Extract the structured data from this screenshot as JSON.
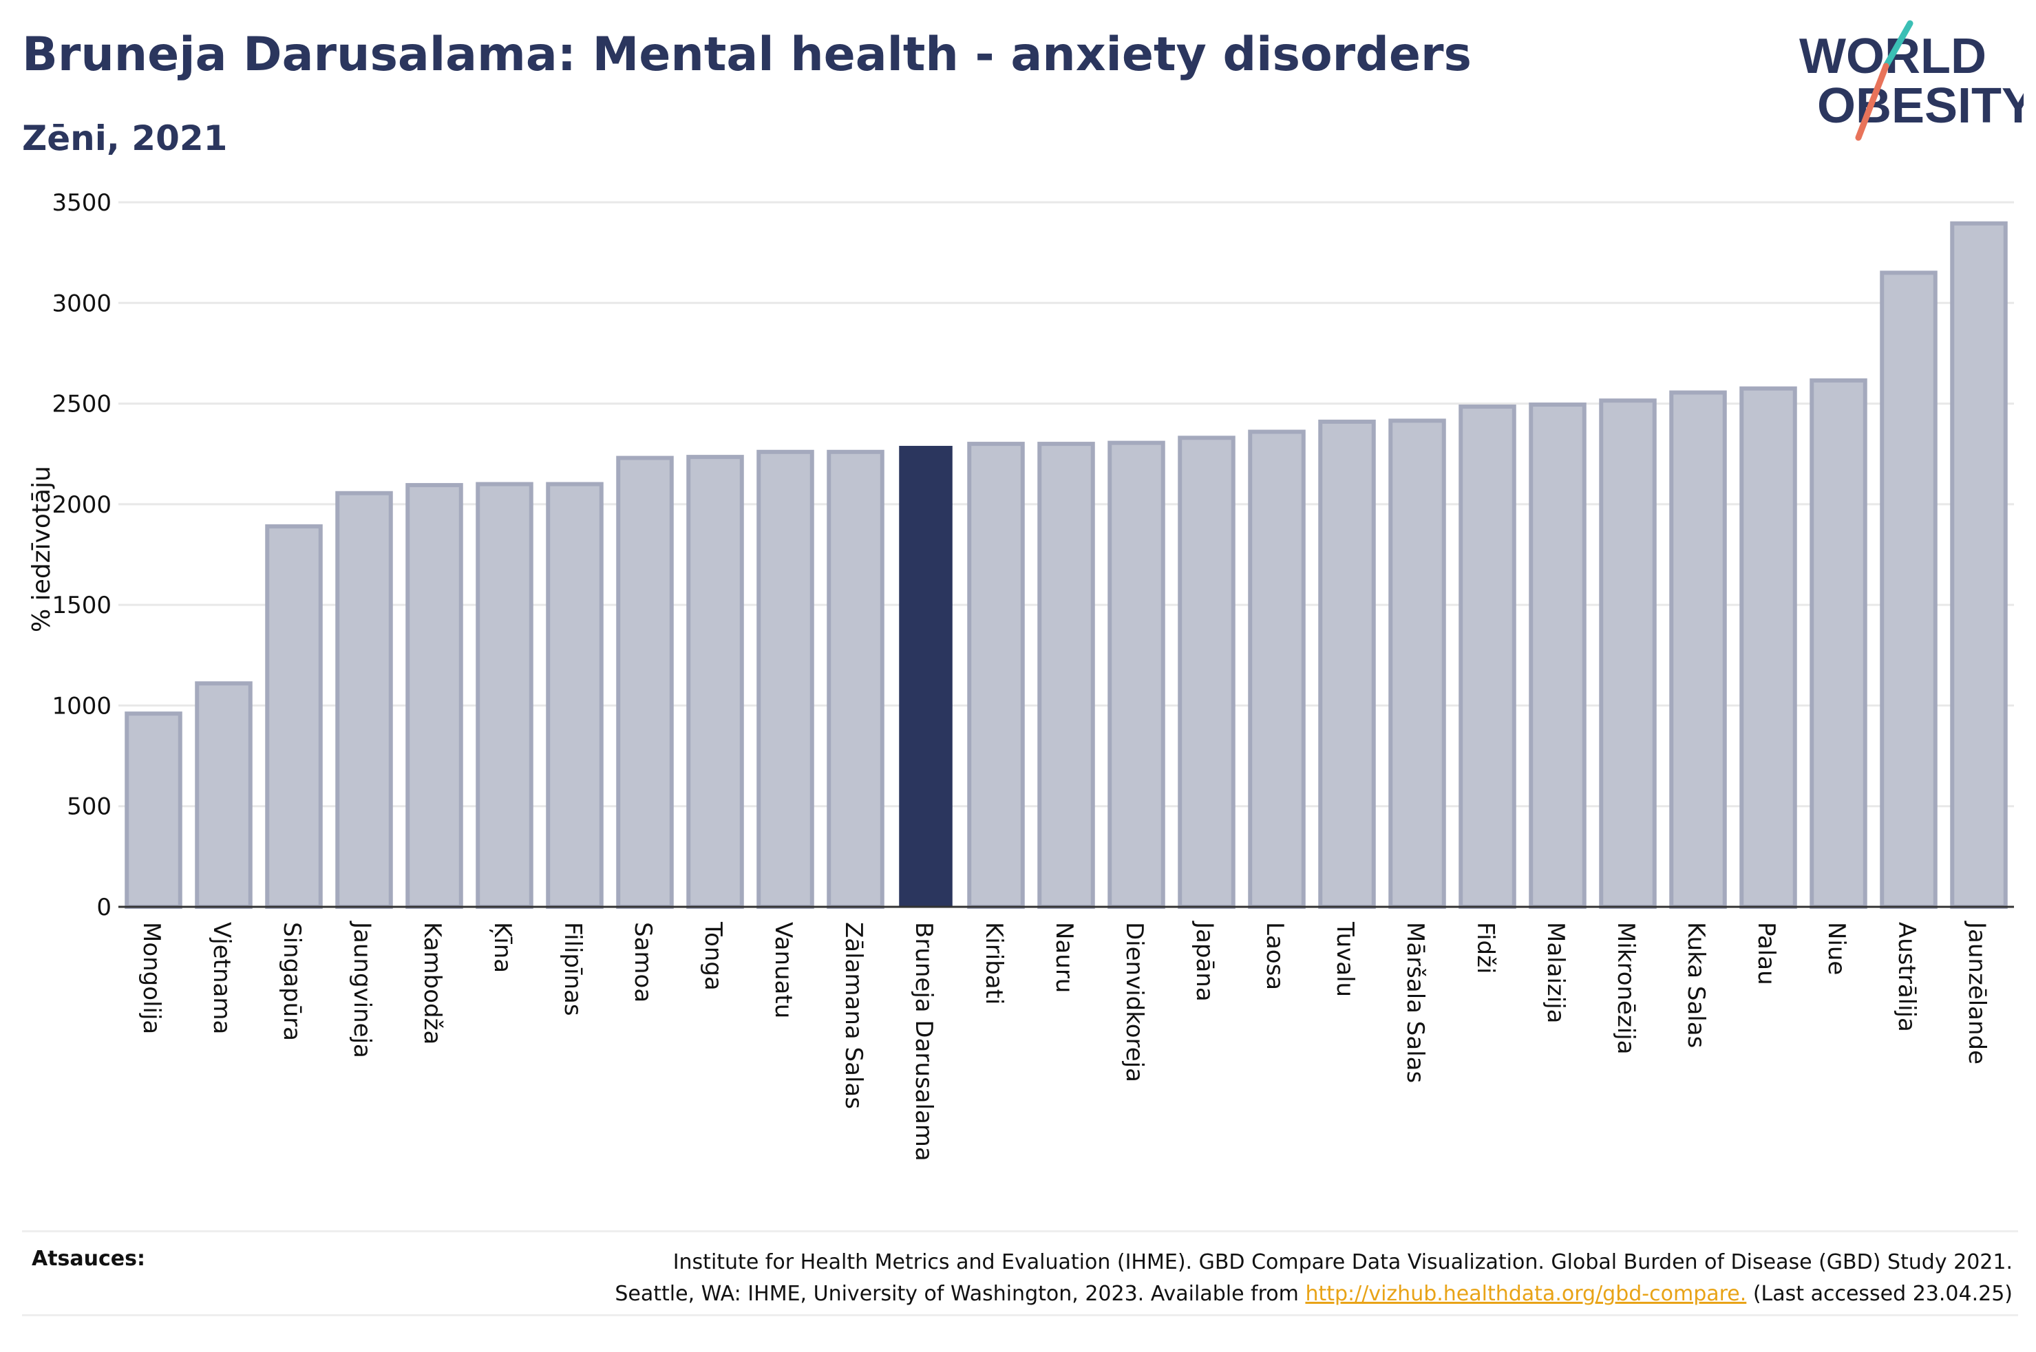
{
  "header": {
    "title": "Bruneja Darusalama: Mental health - anxiety disorders",
    "subtitle": "Zēni, 2021"
  },
  "logo": {
    "line1": "WORLD",
    "line2": "OBESITY",
    "colors": {
      "text": "#2b365e",
      "slash_top": "#3bbfb5",
      "slash_bottom": "#e8735a"
    }
  },
  "colors": {
    "bar_fill": "#bfc3d0",
    "bar_stroke": "#a4a9bd",
    "highlight": "#2b365e",
    "grid": "#e8e8e8",
    "axis": "#333333"
  },
  "chart_data": {
    "type": "bar",
    "title": "Bruneja Darusalama: Mental health - anxiety disorders",
    "subtitle": "Zēni, 2021",
    "xlabel": "",
    "ylabel": "% iedzīvotāju",
    "ylim": [
      0,
      3500
    ],
    "yticks": [
      0,
      500,
      1000,
      1500,
      2000,
      2500,
      3000,
      3500
    ],
    "grid": true,
    "highlight_category": "Bruneja Darusalama",
    "categories": [
      "Mongolija",
      "Vjetnama",
      "Singapūra",
      "Jaungvineja",
      "Kambodža",
      "Ķīna",
      "Filipīnas",
      "Samoa",
      "Tonga",
      "Vanuatu",
      "Zālamana Salas",
      "Bruneja Darusalama",
      "Kiribati",
      "Nauru",
      "Dienvidkoreja",
      "Japāna",
      "Laosa",
      "Tuvalu",
      "Māršala Salas",
      "Fidži",
      "Malaizija",
      "Mikronēzija",
      "Kuka Salas",
      "Palau",
      "Niue",
      "Austrālija",
      "Jaunzēlande"
    ],
    "values": [
      960,
      1110,
      1890,
      2055,
      2095,
      2100,
      2100,
      2230,
      2235,
      2260,
      2260,
      2290,
      2300,
      2300,
      2305,
      2330,
      2360,
      2410,
      2415,
      2485,
      2495,
      2515,
      2555,
      2575,
      2615,
      3150,
      3395
    ]
  },
  "footer": {
    "sources_label": "Atsauces:",
    "source_line1": "Institute for Health Metrics and Evaluation (IHME). GBD Compare Data Visualization. Global Burden of Disease (GBD) Study 2021.",
    "source_line2_prefix": "Seattle, WA: IHME, University of Washington, 2023. Available from",
    "source_link": "http://vizhub.healthdata.org/gbd-compare.",
    "source_line2_suffix": "(Last accessed 23.04.25)"
  }
}
